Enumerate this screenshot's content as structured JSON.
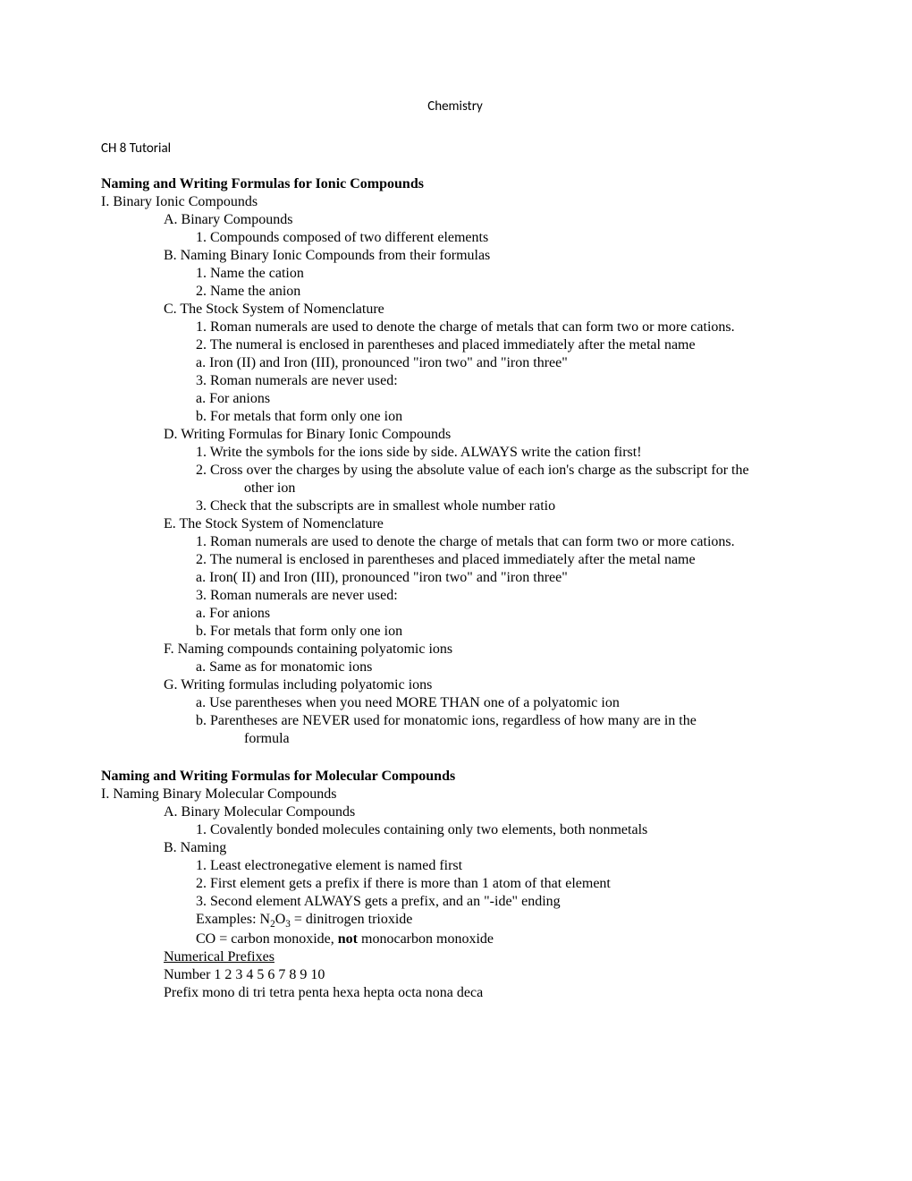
{
  "header_title": "Chemistry",
  "subtitle": "CH 8 Tutorial",
  "section1": {
    "heading": "Naming and Writing Formulas for Ionic Compounds",
    "I": "I. Binary Ionic Compounds",
    "A": "A. Binary Compounds",
    "A1": "1. Compounds composed of two different elements",
    "B": "B. Naming Binary Ionic Compounds from their formulas",
    "B1": "1. Name the cation",
    "B2": "2. Name the anion",
    "C": "C. The Stock System of Nomenclature",
    "C1": "1. Roman numerals are used to denote the charge of metals that can form two or more cations.",
    "C2": "2. The numeral is enclosed in parentheses and placed immediately after the metal name",
    "C2a": "a. Iron (II) and Iron (III), pronounced \"iron two\" and \"iron three\"",
    "C3": "3. Roman numerals are never used:",
    "C3a": "a. For anions",
    "C3b": "b. For metals that form only one ion",
    "D": "D. Writing Formulas for Binary Ionic Compounds",
    "D1": "1. Write the symbols for the ions side by side. ALWAYS write the cation first!",
    "D2": "2. Cross over the charges by using the absolute value of each ion's charge as the subscript for the",
    "D2cont": "other ion",
    "D3": "3. Check that the subscripts are in smallest whole number ratio",
    "E": "E. The Stock System of Nomenclature",
    "E1": "1. Roman numerals are used to denote the charge of metals that can form two or more cations.",
    "E2": "2. The numeral is enclosed in parentheses and placed immediately after the metal name",
    "E2a": "a. Iron( II) and Iron (III), pronounced \"iron two\" and \"iron three\"",
    "E3": "3. Roman numerals are never used:",
    "E3a": "a. For anions",
    "E3b": "b. For metals that form only one ion",
    "F": "F. Naming compounds containing polyatomic ions",
    "Fa": "a. Same as for monatomic ions",
    "G": "G. Writing formulas including polyatomic ions",
    "Ga": "a. Use parentheses when you need MORE THAN one of a polyatomic ion",
    "Gb": "b. Parentheses are NEVER used for monatomic ions, regardless of how many are in the",
    "Gbcont": "formula"
  },
  "section2": {
    "heading": "Naming and Writing Formulas for Molecular Compounds",
    "I": "I. Naming Binary Molecular Compounds",
    "A": "A. Binary Molecular Compounds",
    "A1": "1. Covalently bonded molecules containing only two elements, both nonmetals",
    "B": "B. Naming",
    "B1": "1. Least electronegative element is named first",
    "B2": "2. First element gets a prefix if there is more than 1 atom of that element",
    "B3": "3. Second element ALWAYS gets a prefix, and an \"-ide\" ending",
    "examples_pre": "Examples: N",
    "examples_mid": "O",
    "examples_post": " = dinitrogen trioxide",
    "CO_pre": "CO = carbon monoxide, ",
    "CO_bold": "not",
    "CO_post": " monocarbon monoxide",
    "numprefixes": "Numerical Prefixes",
    "numbers": "Number 1 2 3 4 5 6 7 8 9 10",
    "prefixes": "Prefix mono di tri tetra penta hexa hepta octa nona deca"
  }
}
